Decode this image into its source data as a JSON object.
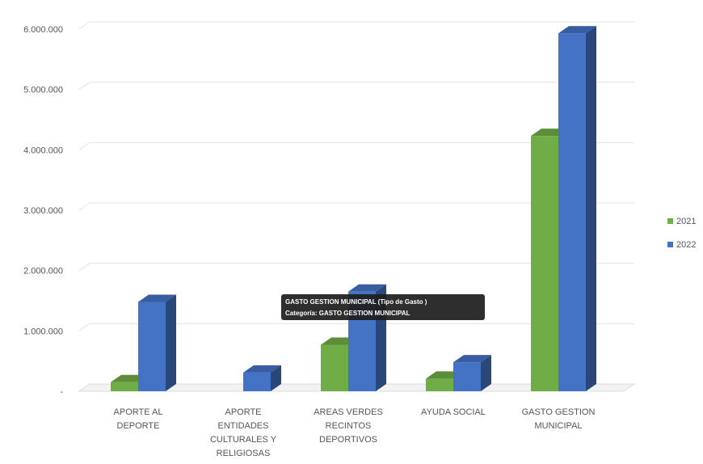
{
  "chart_data": {
    "type": "bar",
    "categories": [
      [
        "APORTE AL",
        "DEPORTE"
      ],
      [
        "APORTE",
        "ENTIDADES",
        "CULTURALES Y",
        "RELIGIOSAS"
      ],
      [
        "AREAS VERDES",
        "RECINTOS",
        "DEPORTIVOS"
      ],
      [
        "AYUDA SOCIAL"
      ],
      [
        "GASTO GESTION",
        "MUNICIPAL"
      ]
    ],
    "series": [
      {
        "name": "2021",
        "color": "#70ad47",
        "values": [
          150000,
          0,
          770000,
          210000,
          4230000
        ]
      },
      {
        "name": "2022",
        "color": "#4472c4",
        "values": [
          1480000,
          310000,
          1650000,
          480000,
          5930000
        ]
      }
    ],
    "ylim": [
      0,
      6000000
    ],
    "yticks": [
      0,
      1000000,
      2000000,
      3000000,
      4000000,
      5000000,
      6000000
    ],
    "ytick_labels": [
      "-",
      "1.000.000",
      "2.000.000",
      "3.000.000",
      "4.000.000",
      "5.000.000",
      "6.000.000"
    ],
    "grid": true,
    "legend_position": "right",
    "style": "3d-column",
    "tooltip": {
      "line1": "GASTO GESTION MUNICIPAL  (Tipo de Gasto )",
      "line2": "Categoría: GASTO GESTION MUNICIPAL"
    }
  }
}
